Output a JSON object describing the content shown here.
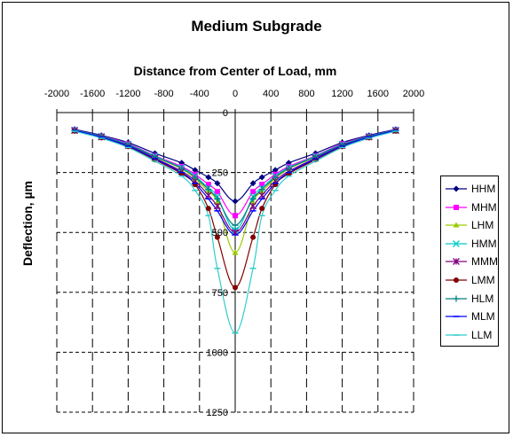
{
  "chart_data": {
    "type": "line",
    "title": "Medium Subgrade",
    "xlabel": "Distance from Center of Load, mm",
    "ylabel": "Deflection, µm",
    "xlim": [
      -2000,
      2000
    ],
    "ylim": [
      0,
      1250
    ],
    "y_reversed": true,
    "x_ticks": [
      -2000,
      -1600,
      -1200,
      -800,
      -400,
      0,
      400,
      800,
      1200,
      1600,
      2000
    ],
    "y_ticks": [
      0,
      250,
      500,
      750,
      1000,
      1250
    ],
    "x_axis_position": "top",
    "grid": "dashed",
    "legend_position": "right",
    "x": [
      -1800,
      -1500,
      -1200,
      -900,
      -600,
      -450,
      -300,
      -200,
      0,
      200,
      300,
      450,
      600,
      900,
      1200,
      1500,
      1800
    ],
    "series": [
      {
        "name": "HHM",
        "color": "#000080",
        "marker": "diamond",
        "values": [
          70,
          95,
          125,
          170,
          210,
          240,
          270,
          295,
          370,
          295,
          270,
          240,
          210,
          170,
          125,
          95,
          70
        ]
      },
      {
        "name": "MHM",
        "color": "#FF00FF",
        "marker": "square",
        "values": [
          72,
          98,
          130,
          180,
          225,
          258,
          300,
          330,
          430,
          330,
          300,
          258,
          225,
          180,
          130,
          98,
          72
        ]
      },
      {
        "name": "LHM",
        "color": "#99CC00",
        "marker": "triangle",
        "values": [
          74,
          100,
          135,
          185,
          235,
          275,
          330,
          375,
          585,
          375,
          330,
          275,
          235,
          185,
          135,
          100,
          74
        ]
      },
      {
        "name": "HMM",
        "color": "#00CCCC",
        "marker": "x",
        "values": [
          73,
          99,
          133,
          182,
          230,
          265,
          315,
          350,
          490,
          350,
          315,
          265,
          230,
          182,
          133,
          99,
          73
        ]
      },
      {
        "name": "MMM",
        "color": "#800080",
        "marker": "star",
        "values": [
          75,
          102,
          138,
          190,
          245,
          285,
          345,
          390,
          500,
          390,
          345,
          285,
          245,
          190,
          138,
          102,
          75
        ]
      },
      {
        "name": "LMM",
        "color": "#800000",
        "marker": "circle",
        "values": [
          77,
          105,
          142,
          197,
          255,
          300,
          400,
          520,
          730,
          520,
          400,
          300,
          255,
          197,
          142,
          105,
          77
        ]
      },
      {
        "name": "HLM",
        "color": "#008080",
        "marker": "plus",
        "values": [
          73,
          100,
          134,
          184,
          232,
          270,
          320,
          360,
          470,
          360,
          320,
          270,
          232,
          184,
          134,
          100,
          73
        ]
      },
      {
        "name": "MLM",
        "color": "#0000FF",
        "marker": "dash",
        "values": [
          75,
          103,
          140,
          193,
          250,
          295,
          360,
          410,
          510,
          410,
          360,
          295,
          250,
          193,
          140,
          103,
          75
        ]
      },
      {
        "name": "LLM",
        "color": "#33CCCC",
        "marker": "dash",
        "values": [
          78,
          107,
          146,
          203,
          265,
          325,
          430,
          650,
          920,
          650,
          430,
          325,
          265,
          203,
          146,
          107,
          78
        ]
      }
    ]
  }
}
